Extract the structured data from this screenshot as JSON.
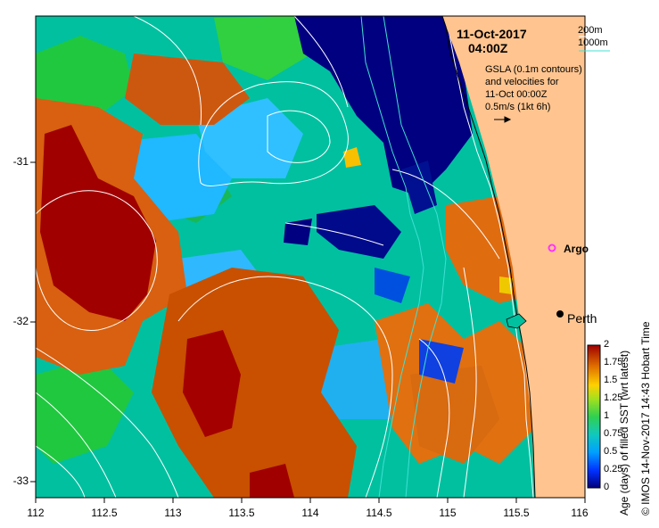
{
  "map": {
    "date_line1": "11-Oct-2017",
    "date_line2": "04:00Z",
    "depth_200": "200m",
    "depth_1000": "1000m",
    "gsla_lines": [
      "GSLA (0.1m contours)",
      "and velocities for",
      "11-Oct 00:00Z",
      "0.5m/s (1kt 6h)"
    ],
    "x_ticks": [
      "112",
      "112.5",
      "113",
      "113.5",
      "114",
      "114.5",
      "115",
      "115.5",
      "116"
    ],
    "y_ticks": [
      "-31",
      "-32",
      "-33"
    ],
    "labels": {
      "argo": "Argo",
      "perth": "Perth"
    },
    "colorbar": {
      "ticks": [
        "2",
        "1.75",
        "1.5",
        "1.25",
        "1",
        "0.75",
        "0.5",
        "0.25",
        "0"
      ],
      "title": "Age (days) of filled SST (wrt latest)"
    },
    "credit": "© IMOS 14-Nov-2017 14:43 Hobart Time",
    "colors": {
      "land": "#FFC48F",
      "argo": "#FF33FF",
      "contour": "#FFFFFF",
      "depth_200": "#FFFFFF",
      "depth_1000": "#40E0D0"
    }
  }
}
